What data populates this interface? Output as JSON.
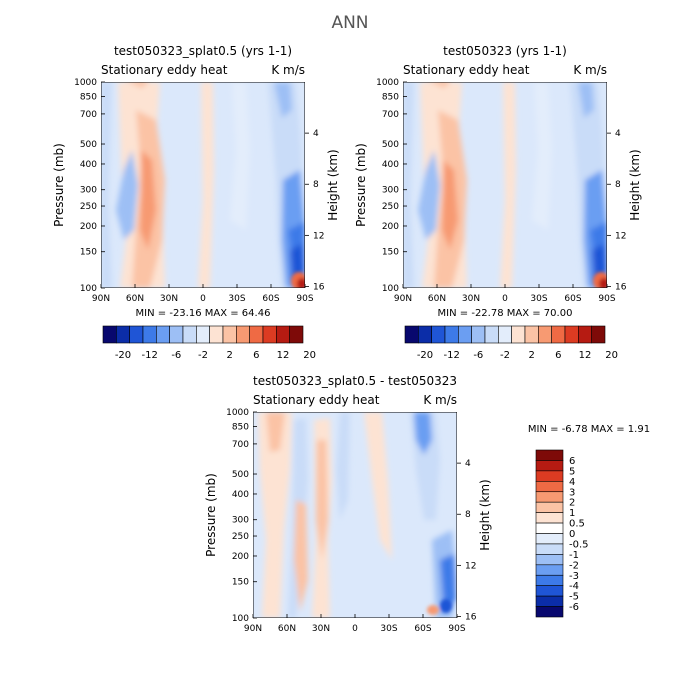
{
  "page": {
    "title": "ANN"
  },
  "chart_data": [
    {
      "type": "heatmap",
      "id": "panel1",
      "title": "test050323_splat0.5 (yrs 1-1)",
      "subtitle_left": "Stationary eddy heat",
      "subtitle_right": "K m/s",
      "x_ticks": [
        "90N",
        "60N",
        "30N",
        "0",
        "30S",
        "60S",
        "90S"
      ],
      "x_range": [
        -90,
        90
      ],
      "y_label": "Pressure (mb)",
      "y_ticks": [
        "100",
        "150",
        "200",
        "250",
        "300",
        "400",
        "500",
        "700",
        "850",
        "1000"
      ],
      "y_ticks_values": [
        100,
        150,
        200,
        250,
        300,
        400,
        500,
        700,
        850,
        1000
      ],
      "y2_label": "Height (km)",
      "y2_ticks": [
        "16",
        "12",
        "8",
        "4"
      ],
      "y2_ticks_values": [
        16,
        12,
        8,
        4
      ],
      "stats": "MIN = -23.16   MAX = 64.46",
      "colorbar_labels": [
        "-20",
        "-12",
        "-6",
        "-2",
        "2",
        "6",
        "12",
        "20"
      ]
    },
    {
      "type": "heatmap",
      "id": "panel2",
      "title": "test050323 (yrs 1-1)",
      "subtitle_left": "Stationary eddy heat",
      "subtitle_right": "K m/s",
      "x_ticks": [
        "90N",
        "60N",
        "30N",
        "0",
        "30S",
        "60S",
        "90S"
      ],
      "x_range": [
        -90,
        90
      ],
      "y_label": "Pressure (mb)",
      "y_ticks": [
        "100",
        "150",
        "200",
        "250",
        "300",
        "400",
        "500",
        "700",
        "850",
        "1000"
      ],
      "y_ticks_values": [
        100,
        150,
        200,
        250,
        300,
        400,
        500,
        700,
        850,
        1000
      ],
      "y2_label": "Height (km)",
      "y2_ticks": [
        "16",
        "12",
        "8",
        "4"
      ],
      "y2_ticks_values": [
        16,
        12,
        8,
        4
      ],
      "stats": "MIN = -22.78   MAX = 70.00",
      "colorbar_labels": [
        "-20",
        "-12",
        "-6",
        "-2",
        "2",
        "6",
        "12",
        "20"
      ]
    },
    {
      "type": "heatmap",
      "id": "panel3",
      "title": "test050323_splat0.5 - test050323",
      "subtitle_left": "Stationary eddy heat",
      "subtitle_right": "K m/s",
      "x_ticks": [
        "90N",
        "60N",
        "30N",
        "0",
        "30S",
        "60S",
        "90S"
      ],
      "x_range": [
        -90,
        90
      ],
      "y_label": "Pressure (mb)",
      "y_ticks": [
        "100",
        "150",
        "200",
        "250",
        "300",
        "400",
        "500",
        "700",
        "850",
        "1000"
      ],
      "y_ticks_values": [
        100,
        150,
        200,
        250,
        300,
        400,
        500,
        700,
        850,
        1000
      ],
      "y2_label": "Height (km)",
      "y2_ticks": [
        "16",
        "12",
        "8",
        "4"
      ],
      "y2_ticks_values": [
        16,
        12,
        8,
        4
      ],
      "stats": "MIN =   -6.78   MAX =    1.91",
      "colorbar_labels": [
        "6",
        "5",
        "4",
        "3",
        "2",
        "1",
        "0.5",
        "0",
        "-0.5",
        "-1",
        "-2",
        "-3",
        "-4",
        "-5",
        "-6"
      ]
    }
  ],
  "colors": {
    "scale_abs": [
      "#08086e",
      "#0b2da8",
      "#1f55d6",
      "#3d7ae8",
      "#6b9ef2",
      "#9dbff5",
      "#c9dcf8",
      "#e3edfb",
      "#fde3d3",
      "#fbc3a5",
      "#f79a72",
      "#ef6a44",
      "#dc3b22",
      "#b61b12",
      "#7e0a08"
    ],
    "scale_diff": [
      "#7e0a08",
      "#b61b12",
      "#dc3b22",
      "#ef6a44",
      "#f79a72",
      "#fbc3a5",
      "#fde3d3",
      "#e3edfb",
      "#c9dcf8",
      "#9dbff5",
      "#6b9ef2",
      "#3d7ae8",
      "#1f55d6",
      "#0b2da8",
      "#08086e"
    ],
    "background_field": "#dbe8fb"
  }
}
